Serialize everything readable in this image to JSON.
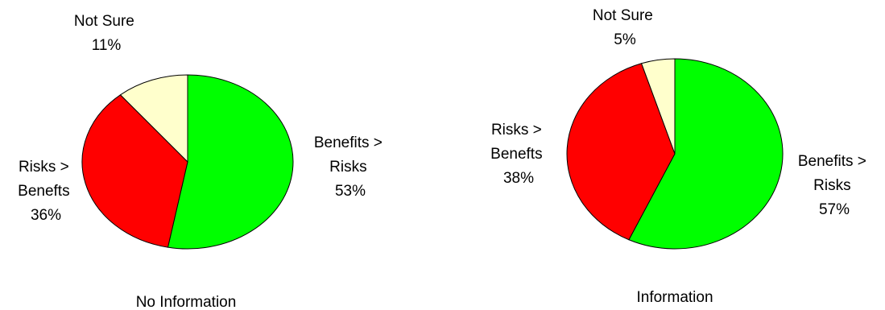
{
  "chart_data": [
    {
      "type": "pie",
      "title": "No Information",
      "slices": [
        {
          "label_lines": [
            "Benefits >",
            "Risks"
          ],
          "pct_label": "53%",
          "value": 53,
          "color": "#00ff00"
        },
        {
          "label_lines": [
            "Risks >",
            "Benefts"
          ],
          "pct_label": "36%",
          "value": 36,
          "color": "#ff0000"
        },
        {
          "label_lines": [
            "Not Sure"
          ],
          "pct_label": "11%",
          "value": 11,
          "color": "#ffffcc"
        }
      ]
    },
    {
      "type": "pie",
      "title": "Information",
      "slices": [
        {
          "label_lines": [
            "Benefits >",
            "Risks"
          ],
          "pct_label": "57%",
          "value": 57,
          "color": "#00ff00"
        },
        {
          "label_lines": [
            "Risks >",
            "Benefts"
          ],
          "pct_label": "38%",
          "value": 38,
          "color": "#ff0000"
        },
        {
          "label_lines": [
            "Not Sure"
          ],
          "pct_label": "5%",
          "value": 5,
          "color": "#ffffcc"
        }
      ]
    }
  ]
}
